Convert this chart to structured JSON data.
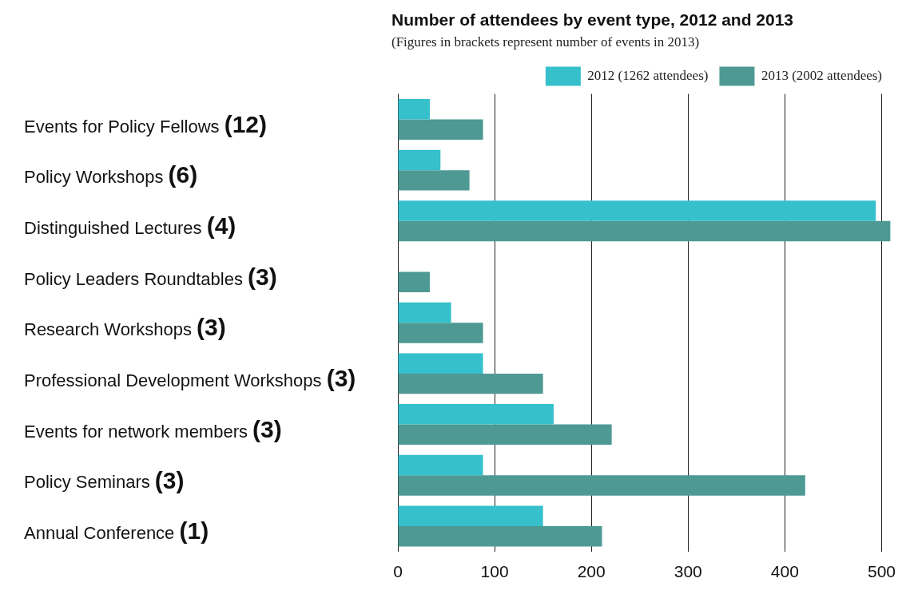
{
  "chart_data": {
    "type": "bar",
    "orientation": "horizontal",
    "title": "Number of attendees by event type, 2012 and 2013",
    "subtitle": "(Figures in brackets represent number of events in 2013)",
    "categories": [
      "Events for Policy Fellows (12)",
      "Policy Workshops (6)",
      "Distinguished Lectures (4)",
      "Policy Leaders Roundtables (3)",
      "Research Workshops (3)",
      "Professional Development Workshops (3)",
      "Events for network members (3)",
      "Policy Seminars (3)",
      "Annual Conference (1)"
    ],
    "series": [
      {
        "name": "2012 (1262 attendees)",
        "color": "#35c0cc",
        "values": [
          33,
          44,
          494,
          null,
          55,
          88,
          161,
          88,
          150
        ]
      },
      {
        "name": "2013 (2002 attendees)",
        "color": "#4e9993",
        "values": [
          88,
          74,
          509,
          33,
          88,
          150,
          221,
          421,
          211
        ]
      }
    ],
    "xlim": [
      0,
      512
    ],
    "xticks": [
      0,
      100,
      200,
      300,
      400,
      500
    ],
    "grid": "x",
    "legend": "top right"
  }
}
